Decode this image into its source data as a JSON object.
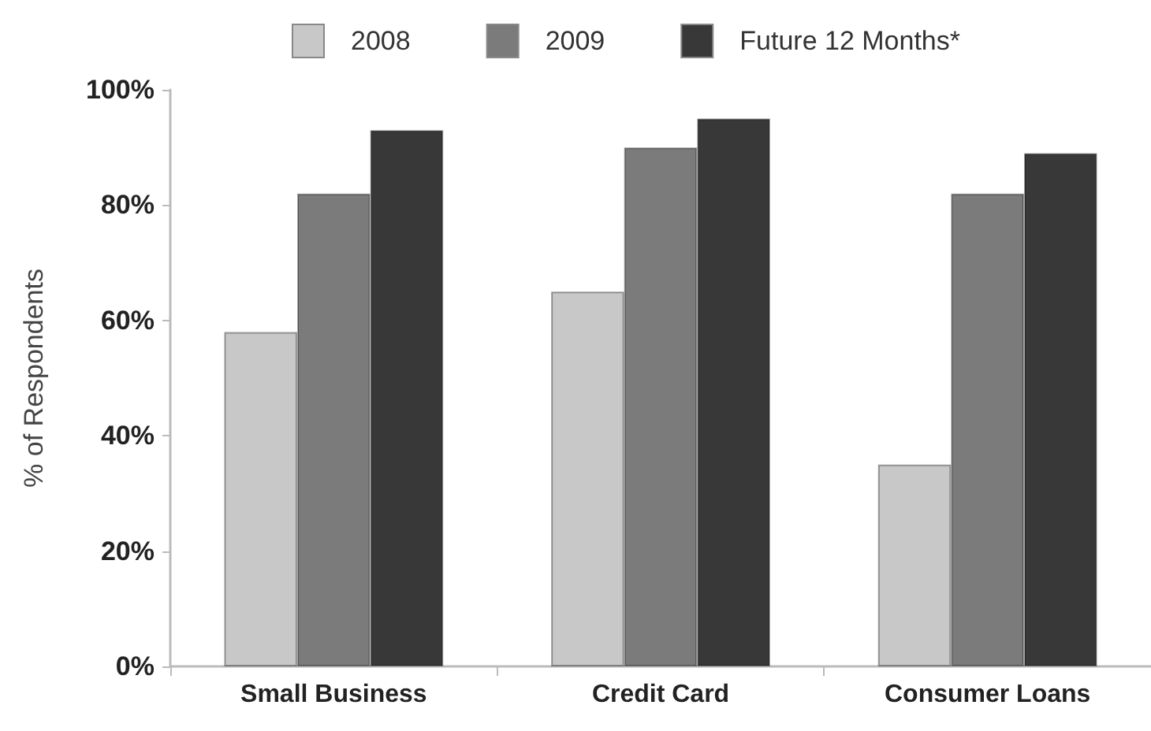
{
  "chart_data": {
    "type": "bar",
    "categories": [
      "Small Business",
      "Credit Card",
      "Consumer Loans"
    ],
    "series": [
      {
        "name": "2008",
        "color": "#c8c8c8",
        "values": [
          58,
          65,
          35
        ]
      },
      {
        "name": "2009",
        "color": "#7b7b7b",
        "values": [
          82,
          90,
          82
        ]
      },
      {
        "name": "Future 12 Months*",
        "color": "#383838",
        "values": [
          93,
          95,
          89
        ]
      }
    ],
    "ylabel": "% of Respondents",
    "ylim": [
      0,
      100
    ],
    "yticks": [
      {
        "value": 0,
        "label": "0%"
      },
      {
        "value": 20,
        "label": "20%"
      },
      {
        "value": 40,
        "label": "40%"
      },
      {
        "value": 60,
        "label": "60%"
      },
      {
        "value": 80,
        "label": "80%"
      },
      {
        "value": 100,
        "label": "100%"
      }
    ],
    "grid": false,
    "legend": "top"
  }
}
